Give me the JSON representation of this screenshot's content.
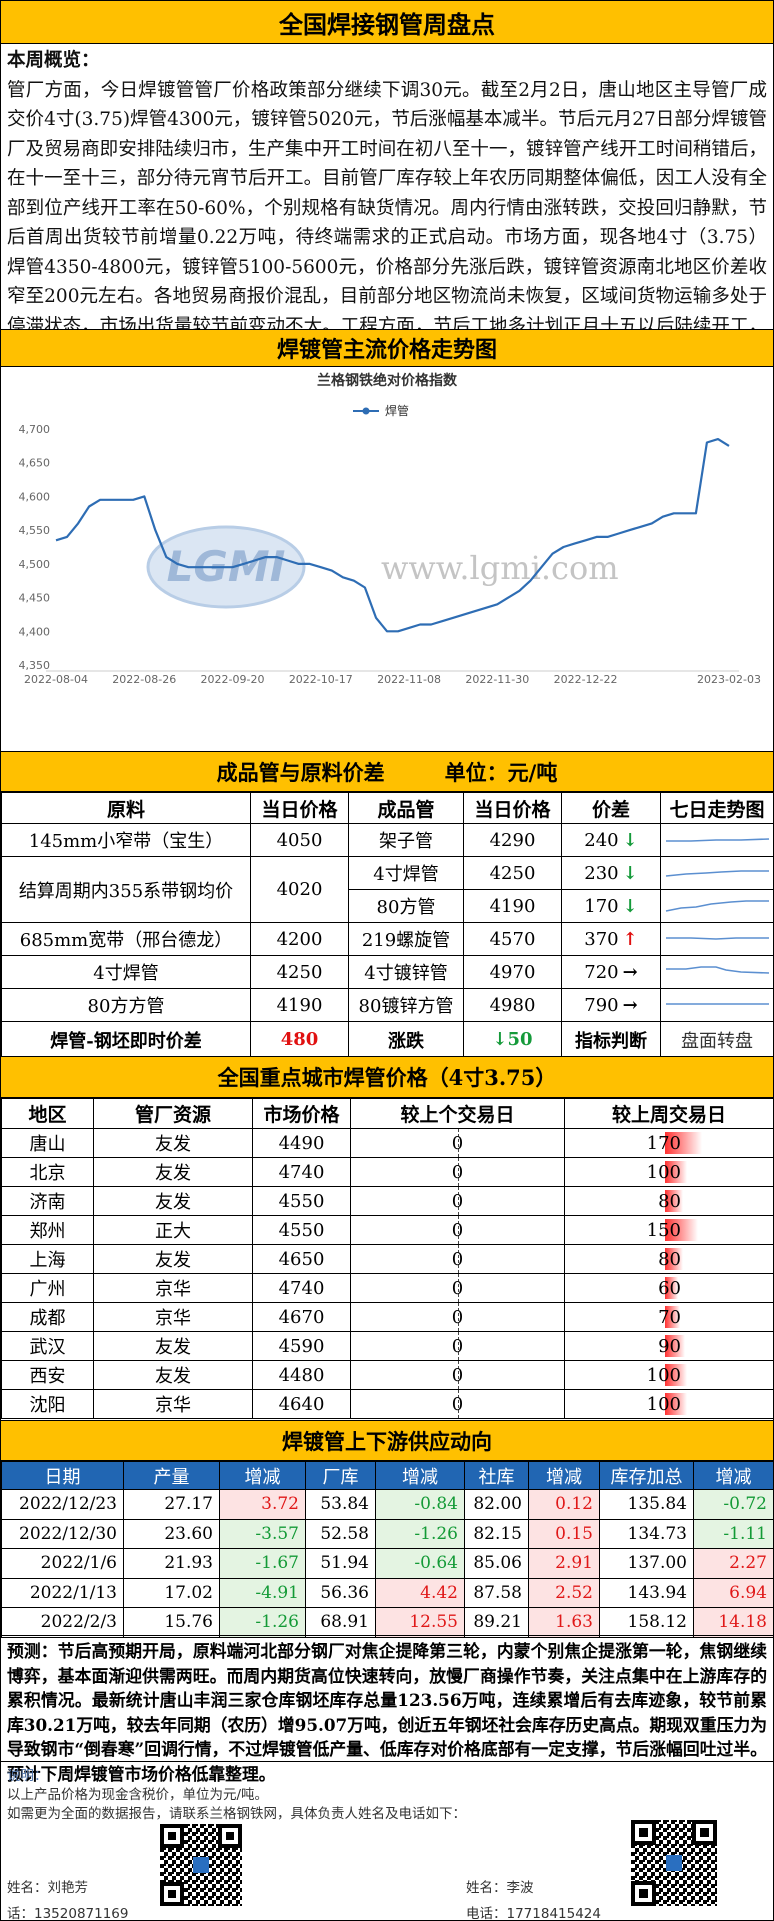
{
  "header": {
    "title": "全国焊接钢管周盘点"
  },
  "overview": {
    "label": "本周概览：",
    "text": "管厂方面，今日焊镀管管厂价格政策部分继续下调30元。截至2月2日，唐山地区主导管厂成交价4寸(3.75)焊管4300元，镀锌管5020元，节后涨幅基本减半。节后元月27日部分焊镀管厂及贸易商即安排陆续归市，生产集中开工时间在初八至十一，镀锌管产线开工时间稍错后，在十一至十三，部分待元宵节后开工。目前管厂库存较上年农历同期整体偏低，因工人没有全部到位产线开工率在50-60%，个别规格有缺货情况。周内行情由涨转跌，交投回归静默，节后首周出货较节前增量0.22万吨，待终端需求的正式启动。市场方面，现各地4寸（3.75）焊管4350-4800元，镀锌管5100-5600元，价格部分先涨后跌，镀锌管资源南北地区价差收窄至200元左右。各地贸易商报价混乱，目前部分地区物流尚未恢复，区域间货物运输多处于停滞状态，市场出货量较节前变动不大。工程方面，节后工地多计划正月十五以后陆续开工，目前华北、华东劳务到岗率以及开工率均晚于往年。"
  },
  "trend_section": {
    "title": "焊镀管主流价格走势图"
  },
  "chart_data": {
    "type": "line",
    "title": "兰格钢铁绝对价格指数",
    "watermark": "www.lgmi.com",
    "logo": "LGMI",
    "categories": [
      "2022-08-04",
      null,
      null,
      null,
      null,
      null,
      null,
      null,
      "2022-08-26",
      null,
      null,
      null,
      null,
      null,
      null,
      null,
      "2022-09-20",
      null,
      null,
      null,
      null,
      null,
      null,
      null,
      "2022-10-17",
      null,
      null,
      null,
      null,
      null,
      null,
      null,
      "2022-11-08",
      null,
      null,
      null,
      null,
      null,
      null,
      null,
      "2022-11-30",
      null,
      null,
      null,
      null,
      null,
      null,
      null,
      "2022-12-22",
      null,
      null,
      null,
      null,
      null,
      null,
      null,
      null,
      null,
      null,
      null,
      null,
      "2023-02-03"
    ],
    "series": [
      {
        "name": "焊管",
        "color": "#2e6db4",
        "values": [
          4535,
          4540,
          4560,
          4585,
          4595,
          4595,
          4595,
          4595,
          4600,
          4550,
          4510,
          4500,
          4495,
          4495,
          4495,
          4495,
          4495,
          4500,
          4505,
          4510,
          4510,
          4505,
          4500,
          4500,
          4495,
          4490,
          4480,
          4475,
          4465,
          4420,
          4400,
          4400,
          4405,
          4410,
          4410,
          4415,
          4420,
          4425,
          4430,
          4435,
          4440,
          4450,
          4460,
          4475,
          4495,
          4515,
          4525,
          4530,
          4535,
          4540,
          4540,
          4545,
          4550,
          4555,
          4560,
          4570,
          4575,
          4575,
          4575,
          4680,
          4685,
          4675
        ]
      }
    ],
    "ylim": [
      4350,
      4700
    ],
    "yticks": [
      {
        "value": 4350,
        "label": "4,350"
      },
      {
        "value": 4400,
        "label": "4,400"
      },
      {
        "value": 4450,
        "label": "4,450"
      },
      {
        "value": 4500,
        "label": "4,500"
      },
      {
        "value": 4550,
        "label": "4,550"
      },
      {
        "value": 4600,
        "label": "4,600"
      },
      {
        "value": 4650,
        "label": "4,650"
      },
      {
        "value": 4700,
        "label": "4,700"
      }
    ],
    "grid": false,
    "legend": "top"
  },
  "spread_table": {
    "title": "成品管与原料价差",
    "unit": "单位：元/吨",
    "columns": [
      "原料",
      "当日价格",
      "成品管",
      "当日价格",
      "价差",
      "七日走势图"
    ],
    "rows": [
      {
        "material": "145mm小窄带（宝生）",
        "material_price": 4050,
        "product": "架子管",
        "product_price": 4290,
        "spread": 240,
        "arrow": "↓",
        "arrow_color": "#159a3a"
      },
      {
        "material": "结算周期内355系带钢均价",
        "material_price": 4020,
        "product": "4寸焊管",
        "product_price": 4250,
        "spread": 230,
        "arrow": "↓",
        "arrow_color": "#159a3a"
      },
      {
        "product": "80方管",
        "product_price": 4190,
        "spread": 170,
        "arrow": "↓",
        "arrow_color": "#159a3a"
      },
      {
        "material": "685mm宽带（邢台德龙）",
        "material_price": 4200,
        "product": "219螺旋管",
        "product_price": 4570,
        "spread": 370,
        "arrow": "↑",
        "arrow_color": "#e01010"
      },
      {
        "material": "4寸焊管",
        "material_price": 4250,
        "product": "4寸镀锌管",
        "product_price": 4970,
        "spread": 720,
        "arrow": "→",
        "arrow_color": "#000000"
      },
      {
        "material": "80方方管",
        "material_price": 4190,
        "product": "80镀锌方管",
        "product_price": 4980,
        "spread": 790,
        "arrow": "→",
        "arrow_color": "#000000"
      }
    ],
    "summary": [
      "焊管-钢坯即时价差",
      480,
      "涨跌",
      "↓50",
      "指标判断",
      "盘面转盘"
    ]
  },
  "city_table": {
    "title": "全国重点城市焊管价格（4寸3.75）",
    "bar_color": "#ff3030",
    "columns": [
      "地区",
      "管厂资源",
      "市场价格",
      "较上个交易日",
      "较上周交易日"
    ],
    "rows": [
      [
        "唐山",
        "友发",
        4490,
        0,
        170
      ],
      [
        "北京",
        "友发",
        4740,
        0,
        100
      ],
      [
        "济南",
        "友发",
        4550,
        0,
        80
      ],
      [
        "郑州",
        "正大",
        4550,
        0,
        150
      ],
      [
        "上海",
        "友发",
        4650,
        0,
        80
      ],
      [
        "广州",
        "京华",
        4740,
        0,
        60
      ],
      [
        "成都",
        "京华",
        4670,
        0,
        70
      ],
      [
        "武汉",
        "友发",
        4590,
        0,
        90
      ],
      [
        "西安",
        "友发",
        4480,
        0,
        100
      ],
      [
        "沈阳",
        "京华",
        4640,
        0,
        100
      ]
    ]
  },
  "supply_table": {
    "title": "焊镀管上下游供应动向",
    "columns": [
      "日期",
      "产量",
      "增减",
      "厂库",
      "增减",
      "社库",
      "增减",
      "库存加总",
      "增减"
    ],
    "rows": [
      [
        "2022/12/23",
        "27.17",
        "3.72",
        "53.84",
        "-0.84",
        "82.00",
        "0.12",
        "135.84",
        "-0.72"
      ],
      [
        "2022/12/30",
        "23.60",
        "-3.57",
        "52.58",
        "-1.26",
        "82.15",
        "0.15",
        "134.73",
        "-1.11"
      ],
      [
        "2022/1/6",
        "21.93",
        "-1.67",
        "51.94",
        "-0.64",
        "85.06",
        "2.91",
        "137.00",
        "2.27"
      ],
      [
        "2022/1/13",
        "17.02",
        "-4.91",
        "56.36",
        "4.42",
        "87.58",
        "2.52",
        "143.94",
        "6.94"
      ],
      [
        "2022/2/3",
        "15.76",
        "-1.26",
        "68.91",
        "12.55",
        "89.21",
        "1.63",
        "158.12",
        "14.18"
      ]
    ]
  },
  "forecast": {
    "label": "预测：",
    "text": "节后高预期开局，原料端河北部分钢厂对焦企提降第三轮，内蒙个别焦企提涨第一轮，焦钢继续博弈，基本面渐迎供需两旺。而周内期货高位快速转向，放慢厂商操作节奏，关注点集中在上游库存的累积情况。最新统计唐山丰润三家仓库钢坯库存总量123.56万吨，连续累增后有去库迹象，较节前累库30.21万吨，较去年同期（农历）增95.07万吨，创近五年钢坯社会库存历史高点。期现双重压力为导致钢市“倒春寒”回调行情，不过焊镀管低产量、低库存对价格底部有一定支撑，节后涨幅回吐过半。预计下周焊镀管市场价格低靠整理。"
  },
  "notes": {
    "label": "说明：",
    "lines": [
      "以上产品价格为现金含税价，单位为元/吨。",
      "如需更为全面的数据报告，请联系兰格钢铁网，具体负责人姓名及电话如下："
    ],
    "contacts": [
      {
        "name": "姓名：刘艳芳",
        "phone": "话：13520871169"
      },
      {
        "name": "姓名：李波",
        "phone": "电话：17718415424"
      }
    ]
  }
}
